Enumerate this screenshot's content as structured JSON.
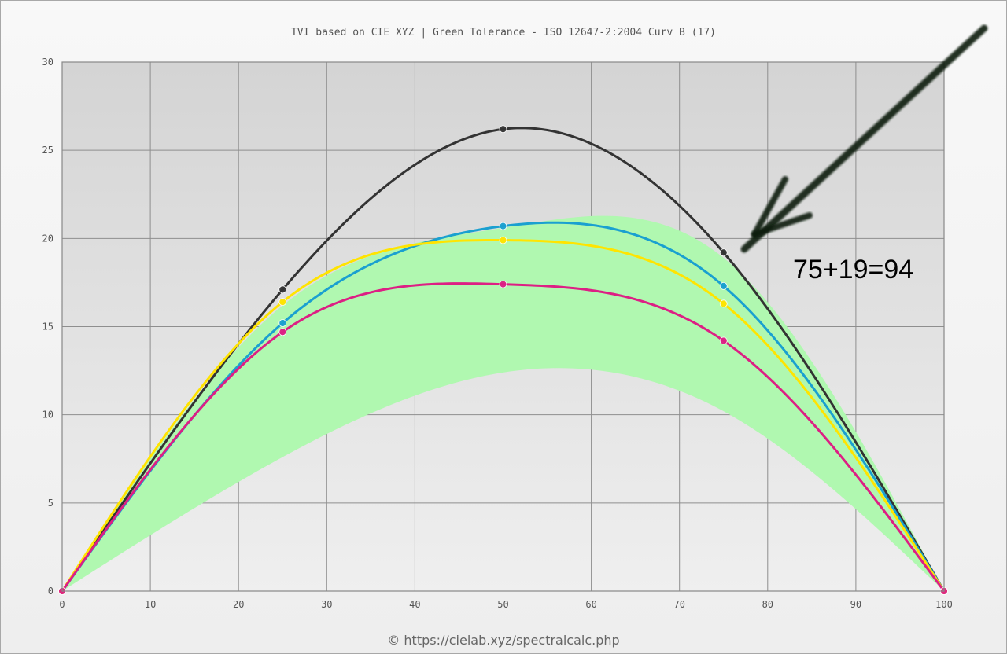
{
  "chart_data": {
    "type": "line",
    "title": "TVI based on CIE XYZ  |  Green Tolerance - ISO 12647-2:2004 Curv B (17)",
    "xlabel": "",
    "ylabel": "",
    "xlim": [
      0,
      100
    ],
    "ylim": [
      0,
      30
    ],
    "x_ticks": [
      "0",
      "10",
      "20",
      "30",
      "40",
      "50",
      "60",
      "70",
      "80",
      "90",
      "100"
    ],
    "y_ticks": [
      "0",
      "5",
      "10",
      "15",
      "20",
      "25",
      "30"
    ],
    "grid": true,
    "legend": "none",
    "tolerance_band": {
      "color": "#b0f8b0",
      "x": [
        0,
        25,
        50,
        75,
        100
      ],
      "lower": [
        0,
        7.6,
        12.4,
        10.2,
        0
      ],
      "upper": [
        0,
        16.2,
        20.6,
        18.9,
        0
      ]
    },
    "series": [
      {
        "color": "#333333",
        "x": [
          0,
          25,
          50,
          75,
          100
        ],
        "values": [
          0,
          17.1,
          26.2,
          19.2,
          0
        ]
      },
      {
        "color": "#1aa0d0",
        "x": [
          0,
          25,
          50,
          75,
          100
        ],
        "values": [
          0,
          15.2,
          20.7,
          17.3,
          0
        ]
      },
      {
        "color": "#ffe400",
        "x": [
          0,
          25,
          50,
          75,
          100
        ],
        "values": [
          0,
          16.4,
          19.9,
          16.3,
          0
        ]
      },
      {
        "color": "#dd1f84",
        "x": [
          0,
          25,
          50,
          75,
          100
        ],
        "values": [
          0,
          14.7,
          17.4,
          14.2,
          0
        ]
      }
    ]
  },
  "annotation": {
    "text": "75+19=94",
    "arrow_color": "#0e1f10",
    "arrow_icon": "arrow-down-left-icon"
  },
  "footer": {
    "text": "© https://cielab.xyz/spectralcalc.php"
  }
}
